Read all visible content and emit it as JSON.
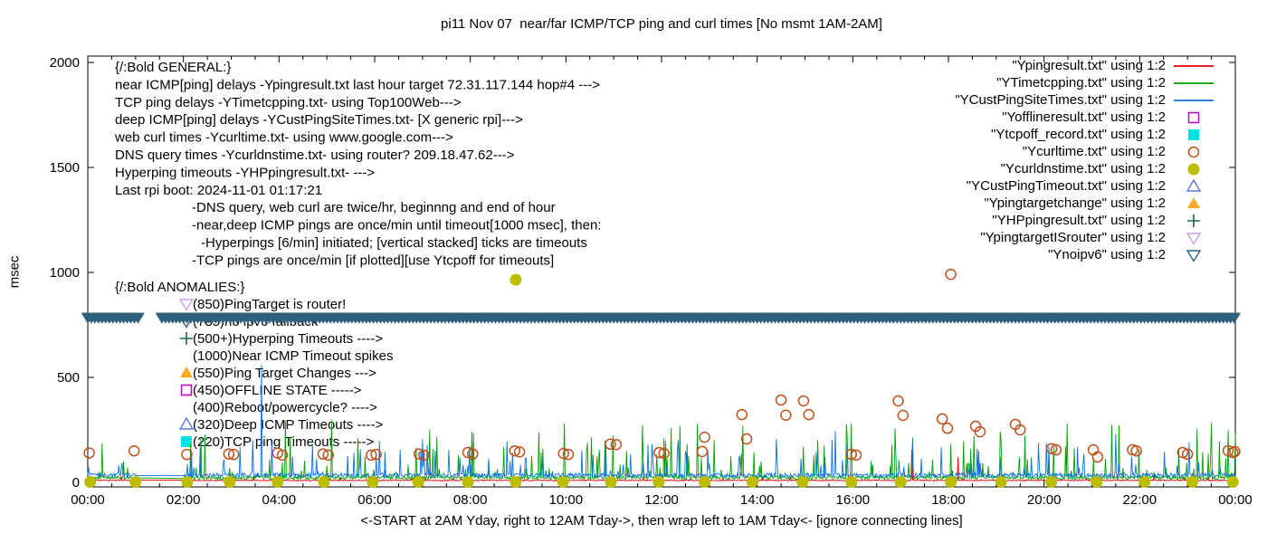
{
  "chart_data": {
    "type": "line",
    "title": "pi11 Nov 07  near/far ICMP/TCP ping and curl times [No msmt 1AM-2AM]",
    "ylabel": "msec",
    "xlabel": "<-START at 2AM Yday, right to 12AM Tday->, then wrap left to 1AM Tday<- [ignore connecting lines]",
    "ylim": [
      0,
      2000
    ],
    "y_ticks": [
      0,
      500,
      1000,
      1500,
      2000
    ],
    "x_ticks": [
      {
        "h": 0,
        "label": "00:00"
      },
      {
        "h": 2,
        "label": "02:00"
      },
      {
        "h": 4,
        "label": "04:00"
      },
      {
        "h": 6,
        "label": "06:00"
      },
      {
        "h": 8,
        "label": "08:00"
      },
      {
        "h": 10,
        "label": "10:00"
      },
      {
        "h": 12,
        "label": "12:00"
      },
      {
        "h": 14,
        "label": "14:00"
      },
      {
        "h": 16,
        "label": "16:00"
      },
      {
        "h": 18,
        "label": "18:00"
      },
      {
        "h": 20,
        "label": "20:00"
      },
      {
        "h": 22,
        "label": "22:00"
      },
      {
        "h": 24,
        "label": "00:00"
      }
    ],
    "no_measurement_gap_hours": [
      1,
      2
    ],
    "legend": [
      {
        "label": "\"Ypingresult.txt\" using 1:2",
        "marker": "line",
        "color": "#e60000"
      },
      {
        "label": "\"YTimetcpping.txt\" using 1:2",
        "marker": "line",
        "color": "#00a000"
      },
      {
        "label": "\"YCustPingSiteTimes.txt\" using 1:2",
        "marker": "line",
        "color": "#0b70e0"
      },
      {
        "label": "\"Yofflineresult.txt\" using 1:2",
        "marker": "square-open",
        "color": "#bc00cc"
      },
      {
        "label": "\"Ytcpoff_record.txt\" using 1:2",
        "marker": "square-fill",
        "color": "#00e1e6"
      },
      {
        "label": "\"Ycurltime.txt\" using 1:2",
        "marker": "circle-open",
        "color": "#c0511b"
      },
      {
        "label": "\"Ycurldnstime.txt\" using 1:2",
        "marker": "circle-fill",
        "color": "#bcbd00"
      },
      {
        "label": "\"YCustPingTimeout.txt\" using 1:2",
        "marker": "tri-up-open",
        "color": "#5677d8"
      },
      {
        "label": "\"Ypingtargetchange\" using 1:2",
        "marker": "tri-up-fill",
        "color": "#ffa727"
      },
      {
        "label": "\"YHPpingresult.txt\" using 1:2",
        "marker": "plus",
        "color": "#156b4a"
      },
      {
        "label": "\"YpingtargetISrouter\" using 1:2",
        "marker": "tri-down-open",
        "color": "#cd9cf2"
      },
      {
        "label": "\"Ynoipv6\" using 1:2",
        "marker": "tri-down-open",
        "color": "#2f617e"
      }
    ],
    "noise_series": [
      {
        "name": "Ypingresult.txt",
        "description": "near ICMP ping, ~10 msec baseline",
        "color": "#e60000",
        "seed": 11,
        "base": 7,
        "jitter": 5,
        "spike_prob": 0.03,
        "spike_max": 25,
        "events": [
          [
            17.23,
            155
          ],
          [
            18.2,
            120
          ]
        ]
      },
      {
        "name": "YTimetcpping.txt",
        "description": "TCP ping, noisy 15-250 msec",
        "color": "#00a000",
        "seed": 22,
        "base": 14,
        "jitter": 16,
        "spike_prob": 0.13,
        "spike_max": 260,
        "events": [
          [
            4.13,
            295
          ],
          [
            5.1,
            300
          ],
          [
            9.97,
            280
          ],
          [
            15.88,
            210
          ],
          [
            23.2,
            255
          ]
        ]
      },
      {
        "name": "YCustPingSiteTimes.txt",
        "description": "deep ICMP ping, noisy 25-200 msec",
        "color": "#0b70e0",
        "seed": 33,
        "base": 24,
        "jitter": 20,
        "spike_prob": 0.11,
        "spike_max": 170,
        "events": [
          [
            3.63,
            560
          ],
          [
            15.63,
            245
          ],
          [
            21.5,
            230
          ]
        ]
      }
    ],
    "curl_points": {
      "name": "Ycurltime.txt",
      "marker": "circle-open",
      "color": "#c0511b",
      "points": [
        [
          0.03,
          140
        ],
        [
          0.97,
          150
        ],
        [
          2.07,
          133
        ],
        [
          2.95,
          135
        ],
        [
          3.05,
          133
        ],
        [
          3.97,
          140
        ],
        [
          4.07,
          130
        ],
        [
          4.92,
          135
        ],
        [
          5.03,
          130
        ],
        [
          5.93,
          130
        ],
        [
          6.03,
          133
        ],
        [
          6.93,
          135
        ],
        [
          7.03,
          130
        ],
        [
          7.95,
          142
        ],
        [
          8.05,
          135
        ],
        [
          8.93,
          150
        ],
        [
          9.03,
          145
        ],
        [
          9.95,
          138
        ],
        [
          10.05,
          133
        ],
        [
          10.93,
          182
        ],
        [
          11.05,
          180
        ],
        [
          11.95,
          142
        ],
        [
          12.05,
          138
        ],
        [
          12.85,
          147
        ],
        [
          12.9,
          215
        ],
        [
          13.68,
          323
        ],
        [
          13.78,
          207
        ],
        [
          14.5,
          392
        ],
        [
          14.6,
          320
        ],
        [
          14.97,
          388
        ],
        [
          15.08,
          323
        ],
        [
          15.97,
          134
        ],
        [
          16.07,
          130
        ],
        [
          16.95,
          388
        ],
        [
          17.05,
          319
        ],
        [
          17.87,
          302
        ],
        [
          17.98,
          258
        ],
        [
          18.05,
          991
        ],
        [
          18.57,
          267
        ],
        [
          18.66,
          241
        ],
        [
          19.4,
          276
        ],
        [
          19.5,
          250
        ],
        [
          20.16,
          160
        ],
        [
          20.25,
          155
        ],
        [
          21.03,
          155
        ],
        [
          21.12,
          121
        ],
        [
          21.85,
          155
        ],
        [
          21.93,
          150
        ],
        [
          22.9,
          142
        ],
        [
          23.0,
          134
        ],
        [
          23.85,
          151
        ],
        [
          23.95,
          142
        ],
        [
          23.99,
          147
        ]
      ]
    },
    "dns_points": {
      "name": "Ycurldnstime.txt",
      "marker": "circle-fill",
      "color": "#bcbd00",
      "points": [
        [
          0.05,
          2
        ],
        [
          1.0,
          2
        ],
        [
          2.08,
          2
        ],
        [
          2.97,
          2
        ],
        [
          3.97,
          2
        ],
        [
          4.94,
          2
        ],
        [
          5.96,
          2
        ],
        [
          6.91,
          2
        ],
        [
          7.95,
          2
        ],
        [
          8.95,
          2
        ],
        [
          8.95,
          965
        ],
        [
          9.94,
          2
        ],
        [
          10.94,
          2
        ],
        [
          11.94,
          2
        ],
        [
          12.9,
          2
        ],
        [
          13.9,
          2
        ],
        [
          14.95,
          2
        ],
        [
          15.97,
          2
        ],
        [
          17.0,
          2
        ],
        [
          18.05,
          2
        ],
        [
          19.1,
          2
        ],
        [
          20.15,
          2
        ],
        [
          21.1,
          2
        ],
        [
          22.1,
          2
        ],
        [
          23.1,
          2
        ],
        [
          23.95,
          2
        ]
      ]
    },
    "noipv6_band": {
      "name": "Ynoipv6",
      "marker": "tri-down",
      "value": 785,
      "color": "#2f617e",
      "segments": [
        [
          0,
          1.08
        ],
        [
          1.55,
          24
        ]
      ],
      "step_hours": 0.075
    },
    "annotations_general": {
      "lines": [
        {
          "text": "{/:Bold GENERAL:}"
        },
        {
          "text": "near ICMP[ping] delays -Ypingresult.txt last hour target 72.31.117.144 hop#4 --->"
        },
        {
          "text": "TCP ping delays -YTimetcpping.txt- using Top100Web--->"
        },
        {
          "text": "deep ICMP[ping] delays -YCustPingSiteTimes.txt- [X generic rpi]--->"
        },
        {
          "text": "web curl times -Ycurltime.txt- using www.google.com--->"
        },
        {
          "text": "DNS query times -Ycurldnstime.txt- using router? 209.18.47.62--->"
        },
        {
          "text": "Hyperping timeouts -YHPpingresult.txt- --->"
        },
        {
          "text": "Last rpi boot: 2024-11-01 01:17:21"
        },
        {
          "text": "-DNS query, web curl are twice/hr, beginnng and end of hour",
          "indent": 85
        },
        {
          "text": "-near,deep ICMP pings are once/min until timeout[1000 msec], then:",
          "indent": 85
        },
        {
          "text": "-Hyperpings [6/min] initiated; [vertical stacked] ticks are timeouts",
          "indent": 95
        },
        {
          "text": "-TCP pings are once/min [if plotted][use Ytcpoff for timeouts]",
          "indent": 85
        }
      ]
    },
    "annotations_anomalies": {
      "lines": [
        {
          "text": "{/:Bold ANOMALIES:}"
        },
        {
          "bullet": "tri-down-open",
          "color": "#cd9cf2",
          "text": "(850)PingTarget is router!"
        },
        {
          "bullet": "tri-down-open",
          "color": "#2f617e",
          "text": "(785)no ipv6 fallback"
        },
        {
          "bullet": "plus",
          "color": "#156b4a",
          "text": "(500+)Hyperping Timeouts ---->"
        },
        {
          "text": "(1000)Near ICMP Timeout spikes",
          "indent": 86
        },
        {
          "bullet": "tri-up-fill",
          "color": "#ffa727",
          "text": "(550)Ping Target Changes --->"
        },
        {
          "bullet": "square-open",
          "color": "#bc00cc",
          "text": "(450)OFFLINE STATE ----->"
        },
        {
          "text": "(400)Reboot/powercycle? ---->",
          "indent": 86
        },
        {
          "bullet": "tri-up-open",
          "color": "#5677d8",
          "text": "(320)Deep ICMP Timeouts ---->"
        },
        {
          "bullet": "square-fill",
          "color": "#00e1e6",
          "text": "(220)TCP ping Timeouts ----->"
        }
      ]
    }
  }
}
